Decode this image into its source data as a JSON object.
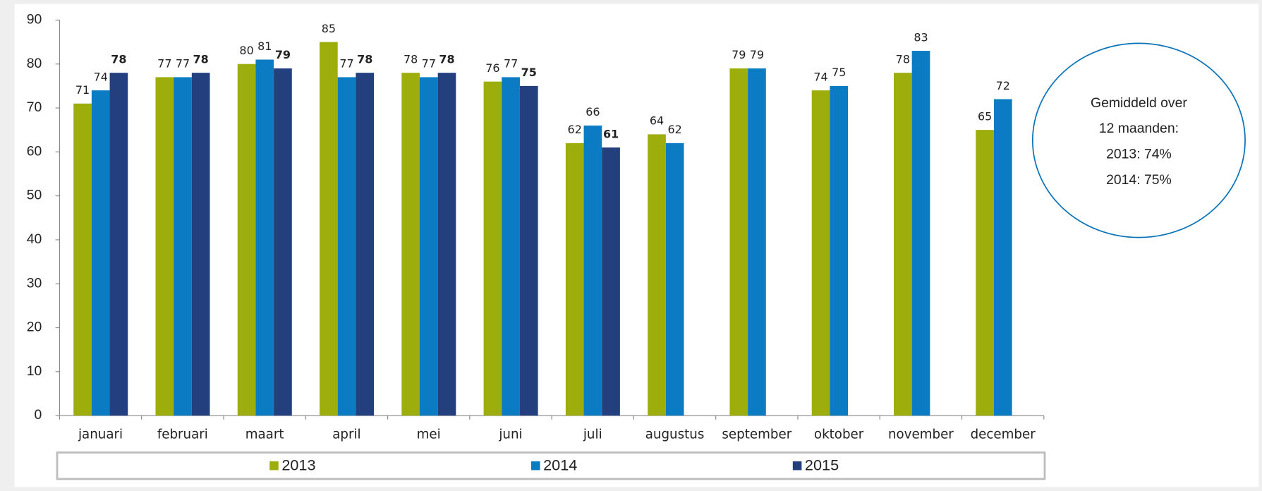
{
  "chart_data": {
    "type": "bar",
    "categories": [
      "januari",
      "februari",
      "maart",
      "april",
      "mei",
      "juni",
      "juli",
      "augustus",
      "september",
      "oktober",
      "november",
      "december"
    ],
    "series": [
      {
        "name": "2013",
        "color": "#9cad0c",
        "values": [
          71,
          77,
          80,
          85,
          78,
          76,
          62,
          64,
          79,
          74,
          78,
          65
        ]
      },
      {
        "name": "2014",
        "color": "#0b7bc3",
        "values": [
          74,
          77,
          81,
          77,
          77,
          77,
          66,
          62,
          79,
          75,
          83,
          72
        ]
      },
      {
        "name": "2015",
        "color": "#243f7d",
        "values": [
          78,
          78,
          79,
          78,
          78,
          75,
          61,
          null,
          null,
          null,
          null,
          null
        ],
        "bold_labels": true
      }
    ],
    "ylim": [
      0,
      90
    ],
    "yticks": [
      0,
      10,
      20,
      30,
      40,
      50,
      60,
      70,
      80,
      90
    ],
    "grid": false,
    "legend": "bottom",
    "annotation": [
      "Gemiddeld over",
      "12 maanden:",
      "2013: 74%",
      "2014: 75%"
    ]
  }
}
